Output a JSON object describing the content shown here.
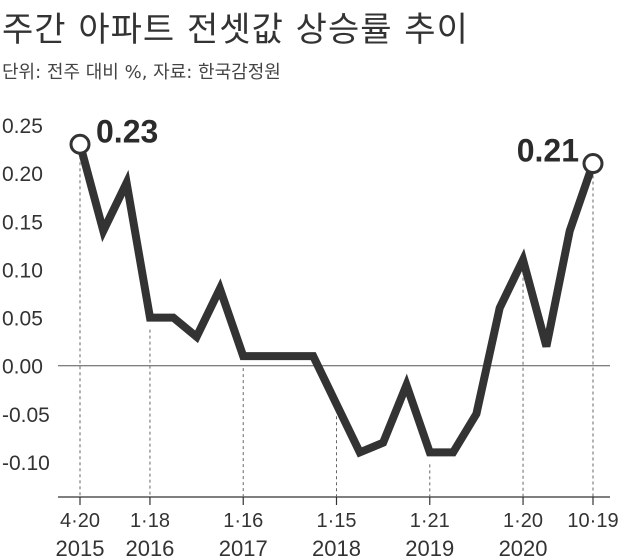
{
  "header": {
    "title": "주간 아파트 전셋값 상승률 추이",
    "subtitle": "단위: 전주 대비 %, 자료: 한국감정원"
  },
  "colors": {
    "line": "#333333",
    "text": "#333333",
    "background": "#ffffff"
  },
  "chart_data": {
    "type": "line",
    "title": "주간 아파트 전셋값 상승률 추이",
    "subtitle": "단위: 전주 대비 %, 자료: 한국감정원",
    "xlabel": "",
    "ylabel": "",
    "ylim": [
      -0.1,
      0.25
    ],
    "grid": false,
    "zero_line": true,
    "y_ticks": [
      "0.25",
      "0.20",
      "0.15",
      "0.10",
      "0.05",
      "0.00",
      "-0.05",
      "-0.10"
    ],
    "x_ticks": [
      {
        "md": "4·20",
        "year": "2015",
        "index": 0
      },
      {
        "md": "1·18",
        "year": "2016",
        "index": 3
      },
      {
        "md": "1·16",
        "year": "2017",
        "index": 7
      },
      {
        "md": "1·15",
        "year": "2018",
        "index": 11
      },
      {
        "md": "1·21",
        "year": "2019",
        "index": 15
      },
      {
        "md": "1·20",
        "year": "2020",
        "index": 19
      },
      {
        "md": "10·19",
        "year": "",
        "index": 22
      }
    ],
    "series": [
      {
        "values": [
          0.23,
          0.14,
          0.19,
          0.05,
          0.05,
          0.03,
          0.08,
          0.01,
          0.01,
          0.01,
          0.01,
          -0.04,
          -0.09,
          -0.08,
          -0.02,
          -0.09,
          -0.09,
          -0.05,
          0.06,
          0.11,
          0.02,
          0.14,
          0.21
        ]
      }
    ],
    "annotations": [
      {
        "text": "0.23",
        "index": 0
      },
      {
        "text": "0.21",
        "index": 22
      }
    ]
  }
}
